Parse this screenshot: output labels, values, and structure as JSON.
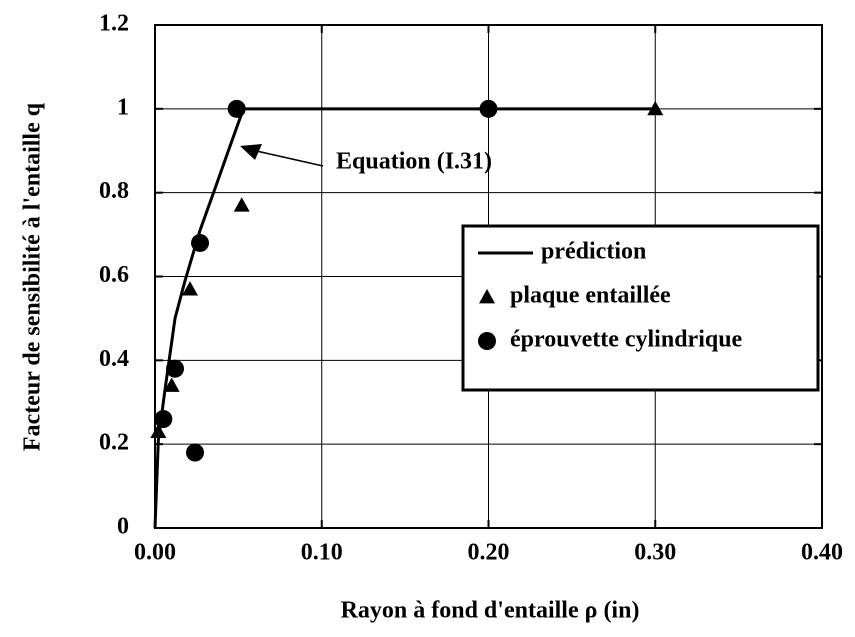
{
  "chart_data": {
    "type": "line",
    "xlabel": "Rayon à fond d'entaille  ρ  (in)",
    "ylabel": "Facteur de sensibilité à l'entaille  q",
    "annotation": "Equation (I.31)",
    "xlim": [
      0,
      0.4
    ],
    "xticks": [
      {
        "value": 0,
        "label": "0.00"
      },
      {
        "value": 0.1,
        "label": "0.10"
      },
      {
        "value": 0.2,
        "label": "0.20"
      },
      {
        "value": 0.3,
        "label": "0.30"
      },
      {
        "value": 0.4,
        "label": "0.40"
      }
    ],
    "ylim": [
      0,
      1.2
    ],
    "yticks": [
      0,
      0.2,
      0.4,
      0.6,
      0.8,
      1,
      1.2
    ],
    "grid": true,
    "series": [
      {
        "name": "prédiction",
        "color": "#000000",
        "style": "line",
        "x": [
          0,
          0.002,
          0.006,
          0.012,
          0.018,
          0.027,
          0.036,
          0.044,
          0.053,
          0.3
        ],
        "values": [
          0,
          0.21,
          0.33,
          0.5,
          0.59,
          0.71,
          0.81,
          0.9,
          1.0,
          1.0
        ]
      },
      {
        "name": "plaque entaillée",
        "color": "#000000",
        "style": "triangle",
        "x": [
          0.002,
          0.01,
          0.021,
          0.052,
          0.3
        ],
        "values": [
          0.23,
          0.34,
          0.57,
          0.77,
          1.0
        ]
      },
      {
        "name": "éprouvette cylindrique",
        "color": "#000000",
        "style": "circle",
        "x": [
          0.005,
          0.012,
          0.024,
          0.027,
          0.049,
          0.2
        ],
        "values": [
          0.26,
          0.38,
          0.18,
          0.68,
          1.0,
          1.0
        ]
      }
    ]
  }
}
